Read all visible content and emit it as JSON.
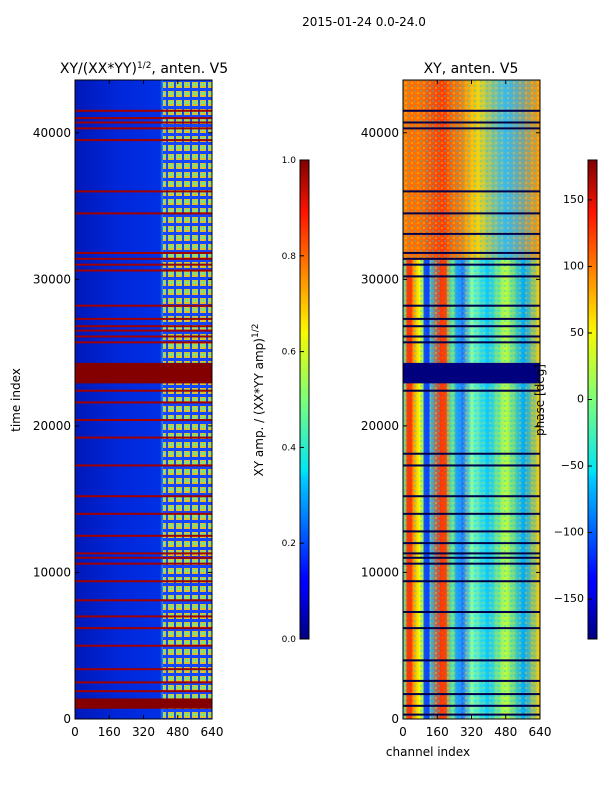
{
  "figure": {
    "suptitle": "2015-01-24 0.0-24.0"
  },
  "chart_data": [
    {
      "type": "heatmap",
      "title_main": "XY/(XX*YY)",
      "title_sup": "1/2",
      "title_rest": ", anten. V5",
      "xlabel": "",
      "ylabel": "time index",
      "xlim": [
        0,
        640
      ],
      "ylim": [
        0,
        43600
      ],
      "xticks": [
        0,
        160,
        320,
        480,
        640
      ],
      "yticks": [
        0,
        10000,
        20000,
        30000,
        40000
      ],
      "colorbar": {
        "label_main": "XY amp. / (XX*YY amp)",
        "label_sup": "1/2",
        "range": [
          0.0,
          1.0
        ],
        "ticks": [
          "0.0",
          "0.2",
          "0.4",
          "0.6",
          "0.8",
          "1.0"
        ],
        "colormap": "jet"
      },
      "saturated_time_bands": [
        [
          22900,
          24300
        ],
        [
          700,
          1400
        ]
      ],
      "flag_time_rows": [
        41500,
        41000,
        40700,
        40300,
        39500,
        36000,
        34500,
        31800,
        31400,
        31000,
        30600,
        28200,
        27300,
        26800,
        26500,
        26100,
        25700,
        22400,
        21600,
        20400,
        19200,
        17300,
        15200,
        14000,
        12500,
        11300,
        11000,
        10600,
        9400,
        8100,
        7000,
        6200,
        5000,
        3400,
        2500,
        1900
      ],
      "bright_channel_region": [
        430,
        640
      ]
    },
    {
      "type": "heatmap",
      "title": "XY, anten. V5",
      "xlabel": "channel index",
      "ylabel": "",
      "xlim": [
        0,
        640
      ],
      "ylim": [
        0,
        43600
      ],
      "xticks": [
        0,
        160,
        320,
        480,
        640
      ],
      "yticks": [
        0,
        10000,
        20000,
        30000,
        40000
      ],
      "colorbar": {
        "label": "phase [deg]",
        "range": [
          -180,
          180
        ],
        "ticks": [
          "150",
          "100",
          "50",
          "0",
          "−50",
          "−100",
          "−150"
        ],
        "colormap": "jet"
      },
      "saturated_time_bands": [
        [
          22900,
          24300
        ]
      ],
      "flag_time_rows": [
        41500,
        40700,
        40300,
        36000,
        34500,
        33100,
        31800,
        31400,
        31000,
        30200,
        28200,
        27300,
        26800,
        26100,
        25700,
        22400,
        18100,
        17300,
        15200,
        14000,
        12800,
        12000,
        11300,
        11000,
        10600,
        9400,
        7300,
        6200,
        4000,
        2600,
        1700,
        900,
        300
      ],
      "vertical_features_channels": [
        30,
        110,
        190,
        260
      ]
    }
  ]
}
